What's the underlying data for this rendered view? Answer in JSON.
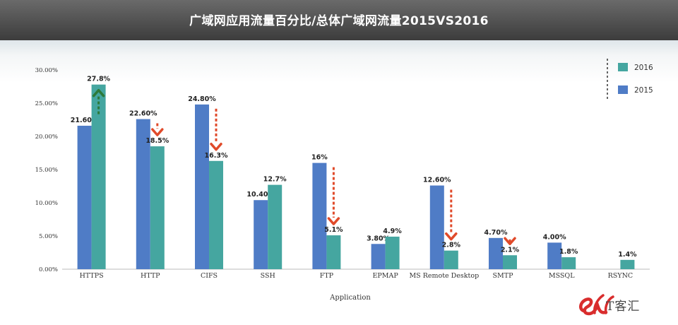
{
  "title": "广域网应用流量百分比/总体广域网流量2015VS2016",
  "watermark_text": "T客汇",
  "chart_data": {
    "type": "bar",
    "title": "广域网应用流量百分比/总体广域网流量2015VS2016",
    "xlabel": "Application",
    "ylabel": "",
    "ylim": [
      0,
      30
    ],
    "yticks": [
      "0.00%",
      "5.00%",
      "10.00%",
      "15.00%",
      "20.00%",
      "25.00%",
      "30.00%"
    ],
    "categories": [
      "HTTPS",
      "HTTP",
      "CIFS",
      "SSH",
      "FTP",
      "EPMAP",
      "MS Remote Desktop",
      "SMTP",
      "MSSQL",
      "RSYNC"
    ],
    "series": [
      {
        "name": "2015",
        "color": "#4f7cc6",
        "values": [
          21.6,
          22.6,
          24.8,
          10.4,
          16,
          3.8,
          12.6,
          4.7,
          4.0,
          null
        ],
        "labels": [
          "21.60%",
          "22.60%",
          "24.80%",
          "10.40%",
          "16%",
          "3.80%",
          "12.60%",
          "4.70%",
          "4.00%",
          ""
        ]
      },
      {
        "name": "2016",
        "color": "#45a6a0",
        "values": [
          27.8,
          18.5,
          16.3,
          12.7,
          5.1,
          4.9,
          2.8,
          2.1,
          1.8,
          1.4
        ],
        "labels": [
          "27.8%",
          "18.5%",
          "16.3%",
          "12.7%",
          "5.1%",
          "4.9%",
          "2.8%",
          "2.1%",
          "1.8%",
          "1.4%"
        ]
      }
    ],
    "trend_arrows": [
      {
        "category": "HTTPS",
        "direction": "up",
        "color": "#2d7a3a"
      },
      {
        "category": "HTTP",
        "direction": "down",
        "color": "#e04a2a"
      },
      {
        "category": "CIFS",
        "direction": "down",
        "color": "#e04a2a"
      },
      {
        "category": "FTP",
        "direction": "down",
        "color": "#e04a2a"
      },
      {
        "category": "MS Remote Desktop",
        "direction": "down",
        "color": "#e04a2a"
      },
      {
        "category": "SMTP",
        "direction": "down",
        "color": "#e04a2a"
      }
    ],
    "legend_position": "top-right",
    "grid": false
  }
}
